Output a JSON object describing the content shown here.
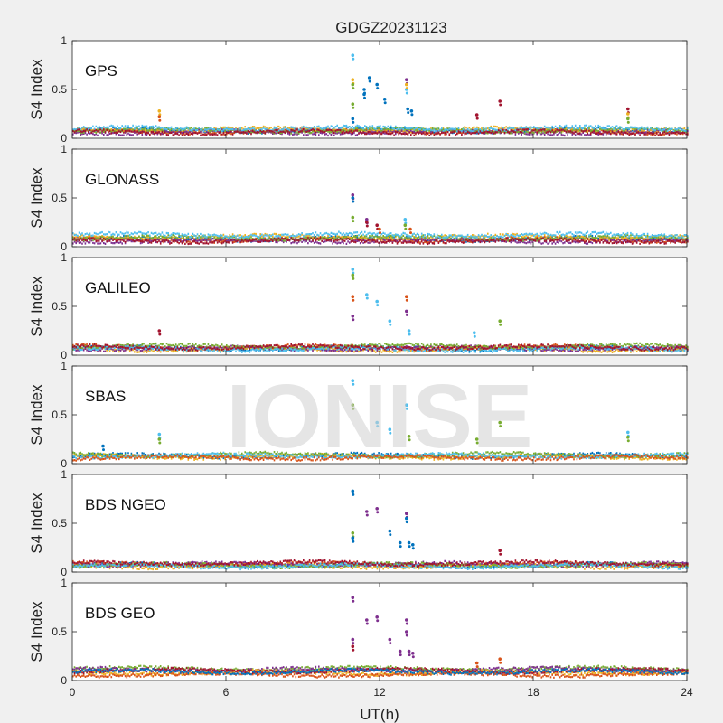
{
  "figure": {
    "title": "GDGZ20231123",
    "watermark": "IONISE",
    "xlabel": "UT(h)",
    "ylabel": "S4 Index"
  },
  "chart_data": [
    {
      "type": "scatter",
      "label": "GPS",
      "ylabel": "S4 Index",
      "xlim": [
        0,
        24
      ],
      "ylim": [
        0,
        1
      ],
      "xticks": [
        0,
        6,
        12,
        18,
        24
      ],
      "yticks": [
        0,
        0.5,
        1
      ],
      "baseline": [
        {
          "color": "#0072BD",
          "level": 0.08
        },
        {
          "color": "#D95319",
          "level": 0.07
        },
        {
          "color": "#EDB120",
          "level": 0.09
        },
        {
          "color": "#7E2F8E",
          "level": 0.06
        },
        {
          "color": "#77AC30",
          "level": 0.08
        },
        {
          "color": "#4DBEEE",
          "level": 0.1
        },
        {
          "color": "#A2142F",
          "level": 0.06
        }
      ],
      "spikes": [
        [
          3.4,
          0.28,
          "#EDB120"
        ],
        [
          3.4,
          0.22,
          "#D95319"
        ],
        [
          10.95,
          0.85,
          "#4DBEEE"
        ],
        [
          10.95,
          0.6,
          "#EDB120"
        ],
        [
          10.95,
          0.55,
          "#77AC30"
        ],
        [
          10.95,
          0.35,
          "#77AC30"
        ],
        [
          10.95,
          0.2,
          "#0072BD"
        ],
        [
          11.4,
          0.5,
          "#0072BD"
        ],
        [
          11.4,
          0.45,
          "#0072BD"
        ],
        [
          11.6,
          0.62,
          "#0072BD"
        ],
        [
          11.9,
          0.55,
          "#0072BD"
        ],
        [
          12.2,
          0.4,
          "#0072BD"
        ],
        [
          13.05,
          0.6,
          "#7E2F8E"
        ],
        [
          13.05,
          0.5,
          "#4DBEEE"
        ],
        [
          13.05,
          0.55,
          "#EDB120"
        ],
        [
          13.1,
          0.3,
          "#0072BD"
        ],
        [
          13.25,
          0.28,
          "#0072BD"
        ],
        [
          15.8,
          0.24,
          "#A2142F"
        ],
        [
          16.7,
          0.38,
          "#A2142F"
        ],
        [
          21.7,
          0.3,
          "#A2142F"
        ],
        [
          21.7,
          0.25,
          "#EDB120"
        ],
        [
          21.7,
          0.2,
          "#77AC30"
        ]
      ]
    },
    {
      "type": "scatter",
      "label": "GLONASS",
      "ylabel": "S4 Index",
      "xlim": [
        0,
        24
      ],
      "ylim": [
        0,
        1
      ],
      "xticks": [
        0,
        6,
        12,
        18,
        24
      ],
      "yticks": [
        0,
        0.5,
        1
      ],
      "baseline": [
        {
          "color": "#0072BD",
          "level": 0.08
        },
        {
          "color": "#D95319",
          "level": 0.07
        },
        {
          "color": "#EDB120",
          "level": 0.1
        },
        {
          "color": "#7E2F8E",
          "level": 0.06
        },
        {
          "color": "#77AC30",
          "level": 0.09
        },
        {
          "color": "#4DBEEE",
          "level": 0.12
        },
        {
          "color": "#A2142F",
          "level": 0.06
        }
      ],
      "spikes": [
        [
          10.95,
          0.53,
          "#7E2F8E"
        ],
        [
          10.95,
          0.5,
          "#0072BD"
        ],
        [
          10.95,
          0.3,
          "#77AC30"
        ],
        [
          11.5,
          0.28,
          "#7E2F8E"
        ],
        [
          11.5,
          0.25,
          "#A2142F"
        ],
        [
          11.9,
          0.22,
          "#A2142F"
        ],
        [
          12.0,
          0.18,
          "#D95319"
        ],
        [
          13.0,
          0.28,
          "#4DBEEE"
        ],
        [
          13.0,
          0.22,
          "#77AC30"
        ],
        [
          13.2,
          0.18,
          "#D95319"
        ]
      ]
    },
    {
      "type": "scatter",
      "label": "GALILEO",
      "ylabel": "S4 Index",
      "xlim": [
        0,
        24
      ],
      "ylim": [
        0,
        1
      ],
      "xticks": [
        0,
        6,
        12,
        18,
        24
      ],
      "yticks": [
        0,
        0.5,
        1
      ],
      "baseline": [
        {
          "color": "#0072BD",
          "level": 0.07
        },
        {
          "color": "#D95319",
          "level": 0.08
        },
        {
          "color": "#EDB120",
          "level": 0.06
        },
        {
          "color": "#7E2F8E",
          "level": 0.07
        },
        {
          "color": "#77AC30",
          "level": 0.09
        },
        {
          "color": "#4DBEEE",
          "level": 0.06
        },
        {
          "color": "#A2142F",
          "level": 0.08
        }
      ],
      "spikes": [
        [
          3.4,
          0.25,
          "#A2142F"
        ],
        [
          10.95,
          0.88,
          "#4DBEEE"
        ],
        [
          10.95,
          0.82,
          "#77AC30"
        ],
        [
          10.95,
          0.6,
          "#D95319"
        ],
        [
          10.95,
          0.4,
          "#7E2F8E"
        ],
        [
          11.5,
          0.62,
          "#4DBEEE"
        ],
        [
          11.9,
          0.55,
          "#4DBEEE"
        ],
        [
          12.4,
          0.35,
          "#4DBEEE"
        ],
        [
          13.05,
          0.6,
          "#D95319"
        ],
        [
          13.05,
          0.45,
          "#7E2F8E"
        ],
        [
          13.15,
          0.25,
          "#4DBEEE"
        ],
        [
          15.7,
          0.23,
          "#4DBEEE"
        ],
        [
          16.7,
          0.35,
          "#77AC30"
        ]
      ]
    },
    {
      "type": "scatter",
      "label": "SBAS",
      "ylabel": "S4 Index",
      "xlim": [
        0,
        24
      ],
      "ylim": [
        0,
        1
      ],
      "xticks": [
        0,
        6,
        12,
        18,
        24
      ],
      "yticks": [
        0,
        0.5,
        1
      ],
      "baseline": [
        {
          "color": "#0072BD",
          "level": 0.08
        },
        {
          "color": "#EDB120",
          "level": 0.07
        },
        {
          "color": "#77AC30",
          "level": 0.09
        },
        {
          "color": "#4DBEEE",
          "level": 0.08
        },
        {
          "color": "#D95319",
          "level": 0.06
        }
      ],
      "spikes": [
        [
          1.2,
          0.18,
          "#0072BD"
        ],
        [
          3.4,
          0.3,
          "#4DBEEE"
        ],
        [
          3.4,
          0.25,
          "#77AC30"
        ],
        [
          10.95,
          0.85,
          "#4DBEEE"
        ],
        [
          10.95,
          0.6,
          "#77AC30"
        ],
        [
          11.9,
          0.42,
          "#4DBEEE"
        ],
        [
          12.4,
          0.35,
          "#4DBEEE"
        ],
        [
          13.05,
          0.6,
          "#4DBEEE"
        ],
        [
          13.15,
          0.28,
          "#77AC30"
        ],
        [
          15.8,
          0.25,
          "#77AC30"
        ],
        [
          16.7,
          0.42,
          "#77AC30"
        ],
        [
          21.7,
          0.32,
          "#4DBEEE"
        ],
        [
          21.7,
          0.27,
          "#77AC30"
        ]
      ]
    },
    {
      "type": "scatter",
      "label": "BDS NGEO",
      "ylabel": "S4 Index",
      "xlim": [
        0,
        24
      ],
      "ylim": [
        0,
        1
      ],
      "xticks": [
        0,
        6,
        12,
        18,
        24
      ],
      "yticks": [
        0,
        0.5,
        1
      ],
      "baseline": [
        {
          "color": "#0072BD",
          "level": 0.07
        },
        {
          "color": "#D95319",
          "level": 0.08
        },
        {
          "color": "#EDB120",
          "level": 0.06
        },
        {
          "color": "#7E2F8E",
          "level": 0.08
        },
        {
          "color": "#77AC30",
          "level": 0.07
        },
        {
          "color": "#4DBEEE",
          "level": 0.06
        },
        {
          "color": "#A2142F",
          "level": 0.09
        }
      ],
      "spikes": [
        [
          10.95,
          0.83,
          "#0072BD"
        ],
        [
          10.95,
          0.4,
          "#77AC30"
        ],
        [
          10.95,
          0.35,
          "#0072BD"
        ],
        [
          11.5,
          0.62,
          "#7E2F8E"
        ],
        [
          11.9,
          0.65,
          "#7E2F8E"
        ],
        [
          12.4,
          0.42,
          "#0072BD"
        ],
        [
          12.8,
          0.3,
          "#0072BD"
        ],
        [
          13.05,
          0.6,
          "#7E2F8E"
        ],
        [
          13.05,
          0.55,
          "#0072BD"
        ],
        [
          13.15,
          0.3,
          "#0072BD"
        ],
        [
          13.3,
          0.28,
          "#0072BD"
        ],
        [
          16.7,
          0.22,
          "#A2142F"
        ]
      ]
    },
    {
      "type": "scatter",
      "label": "BDS GEO",
      "ylabel": "S4 Index",
      "xlim": [
        0,
        24
      ],
      "ylim": [
        0,
        1
      ],
      "xticks": [
        0,
        6,
        12,
        18,
        24
      ],
      "yticks": [
        0,
        0.5,
        1
      ],
      "baseline": [
        {
          "color": "#77AC30",
          "level": 0.12
        },
        {
          "color": "#7E2F8E",
          "level": 0.11
        },
        {
          "color": "#EDB120",
          "level": 0.08
        },
        {
          "color": "#D95319",
          "level": 0.06
        },
        {
          "color": "#A2142F",
          "level": 0.1
        },
        {
          "color": "#0072BD",
          "level": 0.09
        }
      ],
      "spikes": [
        [
          10.95,
          0.85,
          "#7E2F8E"
        ],
        [
          10.95,
          0.42,
          "#7E2F8E"
        ],
        [
          10.95,
          0.35,
          "#A2142F"
        ],
        [
          11.5,
          0.62,
          "#7E2F8E"
        ],
        [
          11.9,
          0.65,
          "#7E2F8E"
        ],
        [
          12.4,
          0.42,
          "#7E2F8E"
        ],
        [
          12.8,
          0.3,
          "#7E2F8E"
        ],
        [
          13.05,
          0.62,
          "#7E2F8E"
        ],
        [
          13.05,
          0.5,
          "#7E2F8E"
        ],
        [
          13.15,
          0.3,
          "#7E2F8E"
        ],
        [
          13.3,
          0.28,
          "#7E2F8E"
        ],
        [
          15.8,
          0.18,
          "#D95319"
        ],
        [
          16.7,
          0.22,
          "#D95319"
        ]
      ]
    }
  ]
}
